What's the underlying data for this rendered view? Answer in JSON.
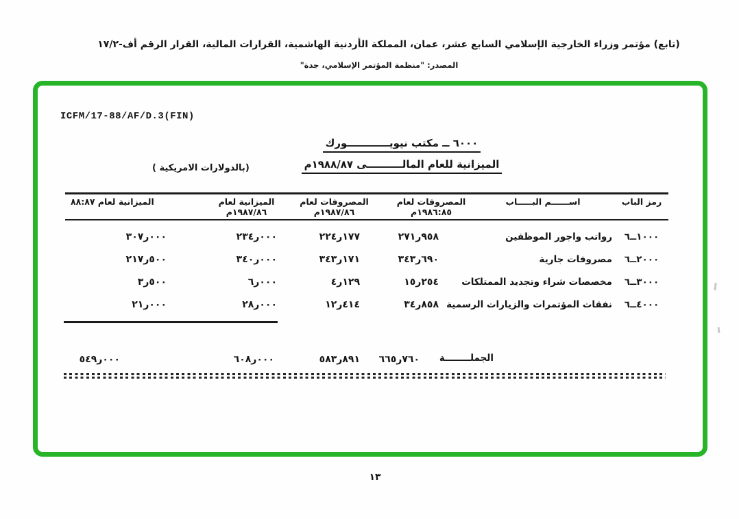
{
  "page": {
    "header_line1": "(تابع) مؤتمر وزراء الخارجية الإسلامي السابع عشر، عمان، المملكة الأردنية الهاشمية، القرارات المالية، القرار الرقم أف-١٧/٢",
    "source_line": "المصدر:  \"منظمة المؤتمر الإسلامي، جدة\"",
    "page_number": "١٣"
  },
  "doc": {
    "ref_code": "ICFM/17-88/AF/D.3(FIN)",
    "office_title": "٦٠٠٠ ــ  مكتب نيويــــــــــــورك",
    "budget_title": "الميزانية للعام المالــــــــــى ١٩٨٨/٨٧م",
    "currency_note": "(بالدولارات الامريكية )",
    "table": {
      "col_code": "رمز الباب",
      "col_name": "اســــــم البـــــاب",
      "col_exp_8586_l1": "المصروفات لعام",
      "col_exp_8586_l2": "١٩٨٦:٨٥م",
      "col_exp_8687_l1": "المصروفات لعام",
      "col_exp_8687_l2": "١٩٨٧/٨٦م",
      "col_bud_8687_l1": "الميزانية لعام",
      "col_bud_8687_l2": "١٩٨٧/٨٦م",
      "col_bud_8788": "الميزانية لعام ٨٨:٨٧",
      "rows": [
        {
          "code": "٦ــ١٠٠٠",
          "name": "رواتب واجور الموظفين",
          "e1": "٢٧١ر٩٥٨",
          "e2": "٢٢٤ر١٧٧",
          "b1": "٢٣٤ر٠٠٠",
          "b2": "٣٠٧ر٠٠٠"
        },
        {
          "code": "٦ــ٢٠٠٠",
          "name": "مصروفات جارية",
          "e1": "٣٤٣ر٦٩٠",
          "e2": "٣٤٣ر١٧١",
          "b1": "٣٤٠ر٠٠٠",
          "b2": "٢١٧ر٥٠٠"
        },
        {
          "code": "٦ــ٣٠٠٠",
          "name": "مخصصات شراء وتجديد الممتلكات",
          "e1": "١٥ر٢٥٤",
          "e2": "٤ر١٢٩",
          "b1": "٦ر٠٠٠",
          "b2": "٣ر٥٠٠"
        },
        {
          "code": "٦ــ٤٠٠٠",
          "name": "نفقات المؤتمرات والزيارات الرسمية",
          "e1": "٣٤ر٨٥٨",
          "e2": "١٢ر٤١٤",
          "b1": "٢٨ر٠٠٠",
          "b2": "٢١ر٠٠٠"
        }
      ],
      "total": {
        "label": "الجملــــــــة",
        "e1": "٦٦٥ر٧٦٠",
        "e2": "٥٨٣ر٨٩١",
        "b1": "٦٠٨ر٠٠٠",
        "b2": "٥٤٩ر٠٠٠"
      }
    },
    "colors": {
      "frame_green": "#28b428",
      "ink": "#161616"
    }
  }
}
